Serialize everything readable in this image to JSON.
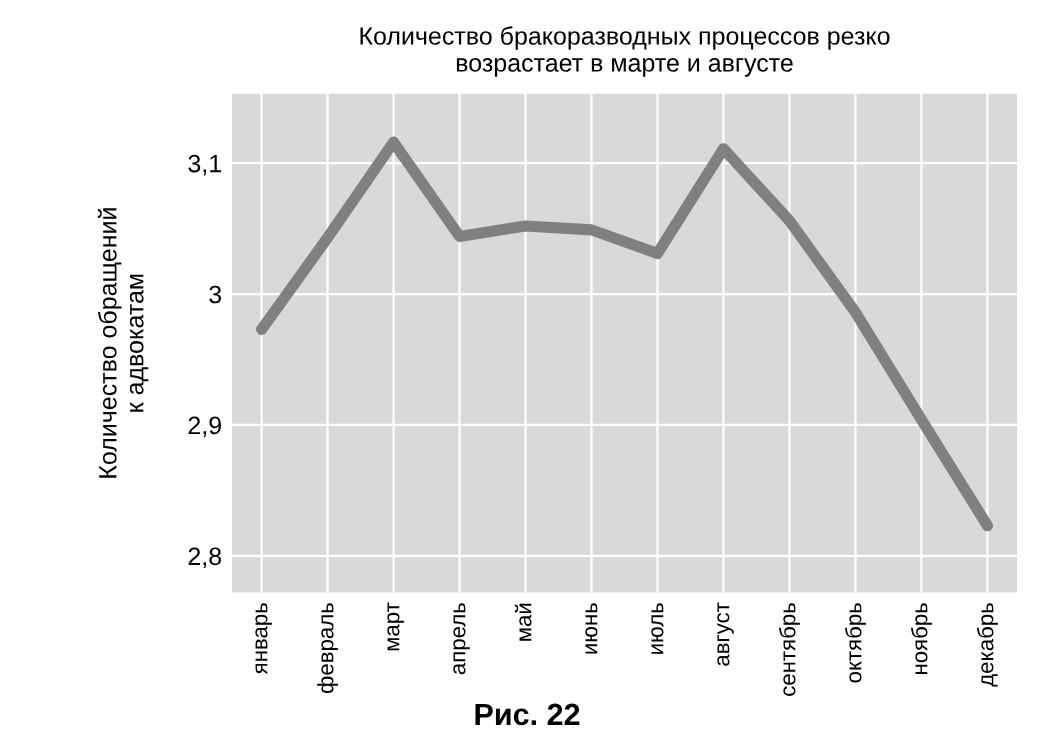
{
  "chart_data": {
    "type": "line",
    "title": "Количество бракоразводных процессов резко\nвозрастает в марте и августе",
    "ylabel": "Количество обращений\nк адвокатам",
    "categories": [
      "январь",
      "февраль",
      "март",
      "апрель",
      "май",
      "июнь",
      "июль",
      "август",
      "сентябрь",
      "октябрь",
      "ноябрь",
      "декабрь"
    ],
    "series": [
      {
        "color": "#808080",
        "values": [
          2.973,
          3.043,
          3.116,
          3.044,
          3.052,
          3.049,
          3.031,
          3.111,
          3.056,
          2.986,
          2.904,
          2.823
        ]
      }
    ],
    "ylim": [
      2.772,
      3.153
    ],
    "yticks": [
      {
        "value": 2.8,
        "label": "2,8"
      },
      {
        "value": 2.9,
        "label": "2,9"
      },
      3,
      {
        "value": 3.1,
        "label": "3,1"
      }
    ],
    "grid": true,
    "marker": "none",
    "line_style": "solid",
    "annotations": [
      "Рис. 22"
    ]
  }
}
